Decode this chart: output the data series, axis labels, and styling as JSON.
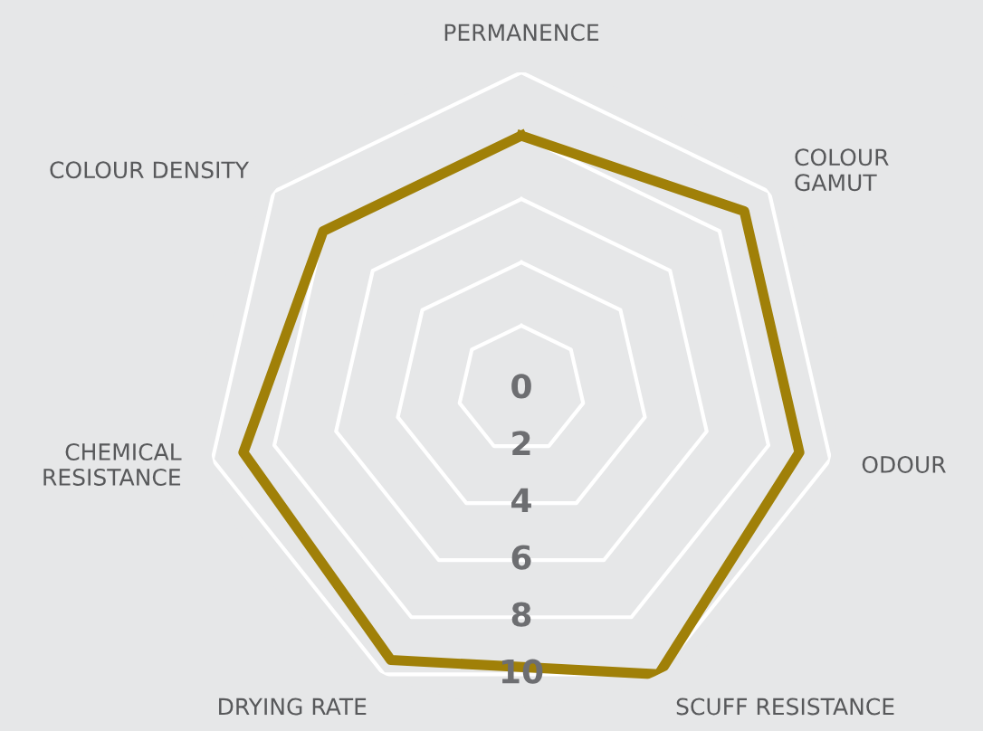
{
  "chart_data": {
    "type": "radar",
    "categories": [
      "PERMANENCE",
      "COLOUR\nGAMUT",
      "ODOUR",
      "SCUFF RESISTANCE",
      "DRYING RATE",
      "CHEMICAL\nRESISTANCE",
      "COLOUR DENSITY"
    ],
    "series": [
      {
        "color": "#a08008",
        "values": [
          8,
          9,
          9,
          10,
          9.5,
          9,
          8
        ]
      }
    ],
    "ylim": [
      0,
      10
    ],
    "yticks": [
      0,
      2,
      4,
      6,
      8,
      10
    ],
    "grid": true
  }
}
